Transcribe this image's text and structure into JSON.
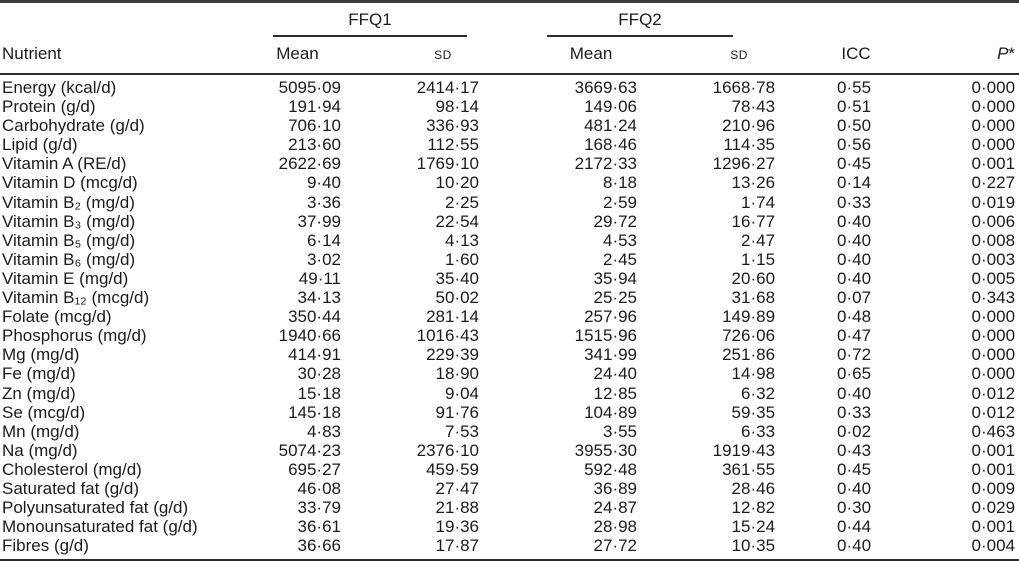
{
  "table": {
    "groups": [
      {
        "label": "FFQ1"
      },
      {
        "label": "FFQ2"
      }
    ],
    "headers": {
      "nutrient": "Nutrient",
      "mean": "Mean",
      "sd": "SD",
      "icc": "ICC",
      "p_base": "P",
      "p_mark": "*"
    },
    "rows": [
      [
        "Energy (kcal/d)",
        "5095·09",
        "2414·17",
        "3669·63",
        "1668·78",
        "0·55",
        "0·000"
      ],
      [
        "Protein (g/d)",
        "191·94",
        "98·14",
        "149·06",
        "78·43",
        "0·51",
        "0·000"
      ],
      [
        "Carbohydrate (g/d)",
        "706·10",
        "336·93",
        "481·24",
        "210·96",
        "0·50",
        "0·000"
      ],
      [
        "Lipid (g/d)",
        "213·60",
        "112·55",
        "168·46",
        "114·35",
        "0·56",
        "0·000"
      ],
      [
        "Vitamin A (RE/d)",
        "2622·69",
        "1769·10",
        "2172·33",
        "1296·27",
        "0·45",
        "0·001"
      ],
      [
        "Vitamin D (mcg/d)",
        "9·40",
        "10·20",
        "8·18",
        "13·26",
        "0·14",
        "0·227"
      ],
      [
        "Vitamin B₂ (mg/d)",
        "3·36",
        "2·25",
        "2·59",
        "1·74",
        "0·33",
        "0·019"
      ],
      [
        "Vitamin B₃ (mg/d)",
        "37·99",
        "22·54",
        "29·72",
        "16·77",
        "0·40",
        "0·006"
      ],
      [
        "Vitamin B₅ (mg/d)",
        "6·14",
        "4·13",
        "4·53",
        "2·47",
        "0·40",
        "0·008"
      ],
      [
        "Vitamin B₆ (mg/d)",
        "3·02",
        "1·60",
        "2·45",
        "1·15",
        "0·40",
        "0·003"
      ],
      [
        "Vitamin E (mg/d)",
        "49·11",
        "35·40",
        "35·94",
        "20·60",
        "0·40",
        "0·005"
      ],
      [
        "Vitamin B₁₂ (mcg/d)",
        "34·13",
        "50·02",
        "25·25",
        "31·68",
        "0·07",
        "0·343"
      ],
      [
        "Folate (mcg/d)",
        "350·44",
        "281·14",
        "257·96",
        "149·89",
        "0·48",
        "0·000"
      ],
      [
        "Phosphorus (mg/d)",
        "1940·66",
        "1016·43",
        "1515·96",
        "726·06",
        "0·47",
        "0·000"
      ],
      [
        "Mg (mg/d)",
        "414·91",
        "229·39",
        "341·99",
        "251·86",
        "0·72",
        "0·000"
      ],
      [
        "Fe (mg/d)",
        "30·28",
        "18·90",
        "24·40",
        "14·98",
        "0·65",
        "0·000"
      ],
      [
        "Zn (mg/d)",
        "15·18",
        "9·04",
        "12·85",
        "6·32",
        "0·40",
        "0·012"
      ],
      [
        "Se (mcg/d)",
        "145·18",
        "91·76",
        "104·89",
        "59·35",
        "0·33",
        "0·012"
      ],
      [
        "Mn (mg/d)",
        "4·83",
        "7·53",
        "3·55",
        "6·33",
        "0·02",
        "0·463"
      ],
      [
        "Na (mg/d)",
        "5074·23",
        "2376·10",
        "3955·30",
        "1919·43",
        "0·43",
        "0·001"
      ],
      [
        "Cholesterol (mg/d)",
        "695·27",
        "459·59",
        "592·48",
        "361·55",
        "0·45",
        "0·001"
      ],
      [
        "Saturated fat (g/d)",
        "46·08",
        "27·47",
        "36·89",
        "28·46",
        "0·40",
        "0·009"
      ],
      [
        "Polyunsaturated fat (g/d)",
        "33·79",
        "21·88",
        "24·87",
        "12·82",
        "0·30",
        "0·029"
      ],
      [
        "Monounsaturated fat (g/d)",
        "36·61",
        "19·36",
        "28·98",
        "15·24",
        "0·44",
        "0·001"
      ],
      [
        "Fibres (g/d)",
        "36·66",
        "17·87",
        "27·72",
        "10·35",
        "0·40",
        "0·004"
      ]
    ]
  }
}
